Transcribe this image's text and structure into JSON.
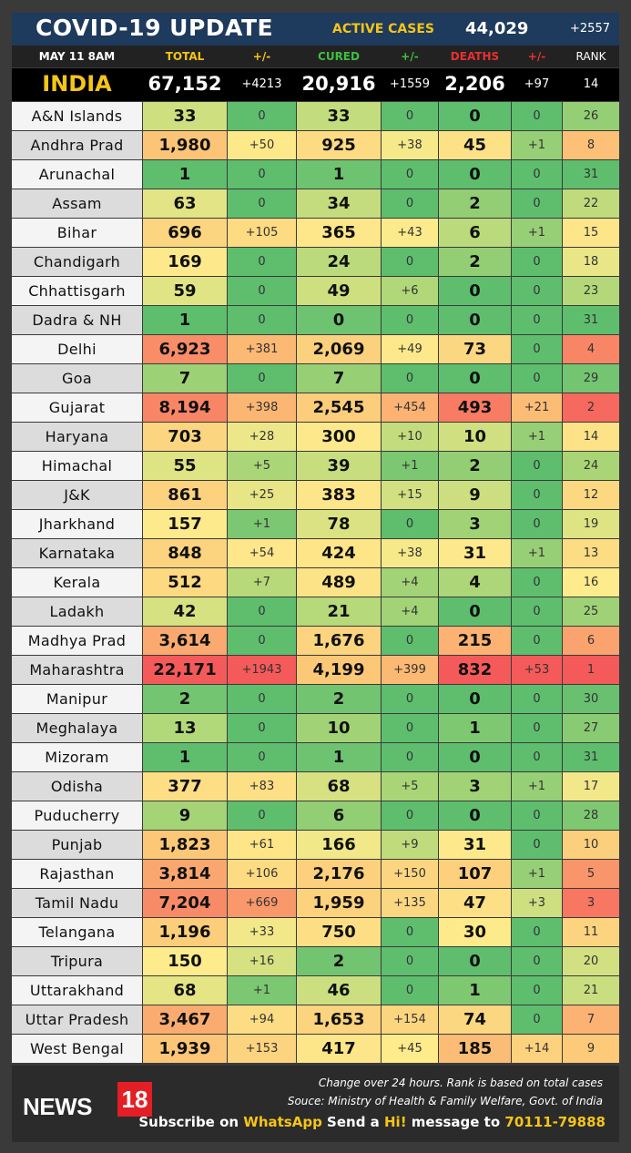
{
  "header": {
    "title": "COVID-19 UPDATE",
    "active_label": "ACTIVE CASES",
    "active_value": "44,029",
    "active_change": "+2557"
  },
  "columns": {
    "date": "MAY 11  8AM",
    "total": "TOTAL",
    "total_change": "+/-",
    "cured": "CURED",
    "cured_change": "+/-",
    "deaths": "DEATHS",
    "deaths_change": "+/-",
    "rank": "RANK"
  },
  "india": {
    "name": "INDIA",
    "total": "67,152",
    "total_change": "+4213",
    "cured": "20,916",
    "cured_change": "+1559",
    "deaths": "2,206",
    "deaths_change": "+97",
    "rank": "14"
  },
  "colors": {
    "header_bg": "#1e3a5c",
    "accent_yellow": "#f5c518",
    "cured_green": "#3fbf3f",
    "deaths_red": "#e83030",
    "logo_red": "#e31e24"
  },
  "rows": [
    {
      "name": "A&N Islands",
      "total": "33",
      "tc": "0",
      "cured": "33",
      "cc": "0",
      "deaths": "0",
      "dc": "0",
      "rank": "26"
    },
    {
      "name": "Andhra Prad",
      "total": "1,980",
      "tc": "+50",
      "cured": "925",
      "cc": "+38",
      "deaths": "45",
      "dc": "+1",
      "rank": "8"
    },
    {
      "name": "Arunachal",
      "total": "1",
      "tc": "0",
      "cured": "1",
      "cc": "0",
      "deaths": "0",
      "dc": "0",
      "rank": "31"
    },
    {
      "name": "Assam",
      "total": "63",
      "tc": "0",
      "cured": "34",
      "cc": "0",
      "deaths": "2",
      "dc": "0",
      "rank": "22"
    },
    {
      "name": "Bihar",
      "total": "696",
      "tc": "+105",
      "cured": "365",
      "cc": "+43",
      "deaths": "6",
      "dc": "+1",
      "rank": "15"
    },
    {
      "name": "Chandigarh",
      "total": "169",
      "tc": "0",
      "cured": "24",
      "cc": "0",
      "deaths": "2",
      "dc": "0",
      "rank": "18"
    },
    {
      "name": "Chhattisgarh",
      "total": "59",
      "tc": "0",
      "cured": "49",
      "cc": "+6",
      "deaths": "0",
      "dc": "0",
      "rank": "23"
    },
    {
      "name": "Dadra & NH",
      "total": "1",
      "tc": "0",
      "cured": "0",
      "cc": "0",
      "deaths": "0",
      "dc": "0",
      "rank": "31"
    },
    {
      "name": "Delhi",
      "total": "6,923",
      "tc": "+381",
      "cured": "2,069",
      "cc": "+49",
      "deaths": "73",
      "dc": "0",
      "rank": "4"
    },
    {
      "name": "Goa",
      "total": "7",
      "tc": "0",
      "cured": "7",
      "cc": "0",
      "deaths": "0",
      "dc": "0",
      "rank": "29"
    },
    {
      "name": "Gujarat",
      "total": "8,194",
      "tc": "+398",
      "cured": "2,545",
      "cc": "+454",
      "deaths": "493",
      "dc": "+21",
      "rank": "2"
    },
    {
      "name": "Haryana",
      "total": "703",
      "tc": "+28",
      "cured": "300",
      "cc": "+10",
      "deaths": "10",
      "dc": "+1",
      "rank": "14"
    },
    {
      "name": "Himachal",
      "total": "55",
      "tc": "+5",
      "cured": "39",
      "cc": "+1",
      "deaths": "2",
      "dc": "0",
      "rank": "24"
    },
    {
      "name": "J&K",
      "total": "861",
      "tc": "+25",
      "cured": "383",
      "cc": "+15",
      "deaths": "9",
      "dc": "0",
      "rank": "12"
    },
    {
      "name": "Jharkhand",
      "total": "157",
      "tc": "+1",
      "cured": "78",
      "cc": "0",
      "deaths": "3",
      "dc": "0",
      "rank": "19"
    },
    {
      "name": "Karnataka",
      "total": "848",
      "tc": "+54",
      "cured": "424",
      "cc": "+38",
      "deaths": "31",
      "dc": "+1",
      "rank": "13"
    },
    {
      "name": "Kerala",
      "total": "512",
      "tc": "+7",
      "cured": "489",
      "cc": "+4",
      "deaths": "4",
      "dc": "0",
      "rank": "16"
    },
    {
      "name": "Ladakh",
      "total": "42",
      "tc": "0",
      "cured": "21",
      "cc": "+4",
      "deaths": "0",
      "dc": "0",
      "rank": "25"
    },
    {
      "name": "Madhya Prad",
      "total": "3,614",
      "tc": "0",
      "cured": "1,676",
      "cc": "0",
      "deaths": "215",
      "dc": "0",
      "rank": "6"
    },
    {
      "name": "Maharashtra",
      "total": "22,171",
      "tc": "+1943",
      "cured": "4,199",
      "cc": "+399",
      "deaths": "832",
      "dc": "+53",
      "rank": "1"
    },
    {
      "name": "Manipur",
      "total": "2",
      "tc": "0",
      "cured": "2",
      "cc": "0",
      "deaths": "0",
      "dc": "0",
      "rank": "30"
    },
    {
      "name": "Meghalaya",
      "total": "13",
      "tc": "0",
      "cured": "10",
      "cc": "0",
      "deaths": "1",
      "dc": "0",
      "rank": "27"
    },
    {
      "name": "Mizoram",
      "total": "1",
      "tc": "0",
      "cured": "1",
      "cc": "0",
      "deaths": "0",
      "dc": "0",
      "rank": "31"
    },
    {
      "name": "Odisha",
      "total": "377",
      "tc": "+83",
      "cured": "68",
      "cc": "+5",
      "deaths": "3",
      "dc": "+1",
      "rank": "17"
    },
    {
      "name": "Puducherry",
      "total": "9",
      "tc": "0",
      "cured": "6",
      "cc": "0",
      "deaths": "0",
      "dc": "0",
      "rank": "28"
    },
    {
      "name": "Punjab",
      "total": "1,823",
      "tc": "+61",
      "cured": "166",
      "cc": "+9",
      "deaths": "31",
      "dc": "0",
      "rank": "10"
    },
    {
      "name": "Rajasthan",
      "total": "3,814",
      "tc": "+106",
      "cured": "2,176",
      "cc": "+150",
      "deaths": "107",
      "dc": "+1",
      "rank": "5"
    },
    {
      "name": "Tamil Nadu",
      "total": "7,204",
      "tc": "+669",
      "cured": "1,959",
      "cc": "+135",
      "deaths": "47",
      "dc": "+3",
      "rank": "3"
    },
    {
      "name": "Telangana",
      "total": "1,196",
      "tc": "+33",
      "cured": "750",
      "cc": "0",
      "deaths": "30",
      "dc": "0",
      "rank": "11"
    },
    {
      "name": "Tripura",
      "total": "150",
      "tc": "+16",
      "cured": "2",
      "cc": "0",
      "deaths": "0",
      "dc": "0",
      "rank": "20"
    },
    {
      "name": "Uttarakhand",
      "total": "68",
      "tc": "+1",
      "cured": "46",
      "cc": "0",
      "deaths": "1",
      "dc": "0",
      "rank": "21"
    },
    {
      "name": "Uttar Pradesh",
      "total": "3,467",
      "tc": "+94",
      "cured": "1,653",
      "cc": "+154",
      "deaths": "74",
      "dc": "0",
      "rank": "7"
    },
    {
      "name": "West Bengal",
      "total": "1,939",
      "tc": "+153",
      "cured": "417",
      "cc": "+45",
      "deaths": "185",
      "dc": "+14",
      "rank": "9"
    }
  ],
  "footer": {
    "logo_news": "NEWS",
    "logo_num": "18",
    "note1": "Change over 24 hours. Rank is based on total cases",
    "note2": "Souce: Ministry of Health & Family Welfare, Govt. of India",
    "sub_pre": "Subscribe on ",
    "sub_app": "WhatsApp",
    "sub_mid": " Send a ",
    "sub_hi": "Hi!",
    "sub_post": " message to ",
    "sub_num": "70111-79888"
  }
}
